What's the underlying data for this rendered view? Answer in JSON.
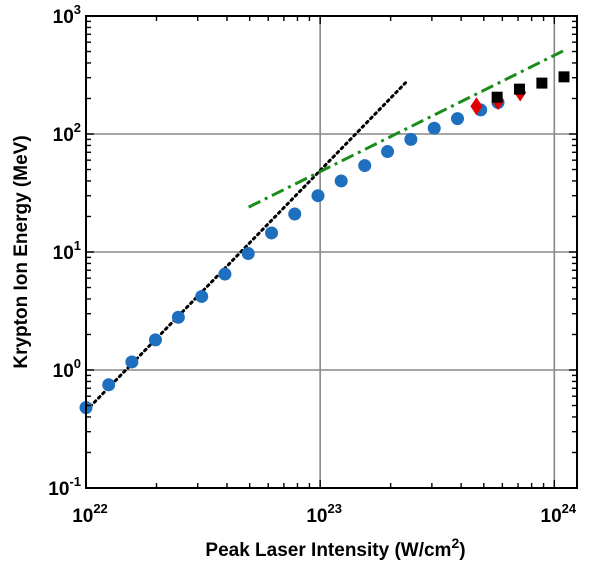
{
  "chart_data": {
    "type": "scatter",
    "xlabel": "Peak Laser Intensity (W/cm",
    "xlabel_sup": "2",
    "xlabel_close": ")",
    "ylabel": "Krypton Ion Energy (MeV)",
    "x_scale": "log",
    "y_scale": "log",
    "xlim": [
      1e+22,
      1.25e+24
    ],
    "ylim": [
      0.1,
      1000
    ],
    "grid": true,
    "x_ticks": [
      {
        "value": 1e+22,
        "base": "10",
        "exp": "22"
      },
      {
        "value": 1e+23,
        "base": "10",
        "exp": "23"
      },
      {
        "value": 1e+24,
        "base": "10",
        "exp": "24"
      }
    ],
    "y_ticks": [
      {
        "value": 0.1,
        "base": "10",
        "exp": "-1"
      },
      {
        "value": 1,
        "base": "10",
        "exp": "0"
      },
      {
        "value": 10,
        "base": "10",
        "exp": "1"
      },
      {
        "value": 100,
        "base": "10",
        "exp": "2"
      },
      {
        "value": 1000,
        "base": "10",
        "exp": "3"
      }
    ],
    "series": [
      {
        "marker": "circle",
        "color": "#1f6fbf",
        "x": [
          1e+22,
          1.25e+22,
          1.57e+22,
          1.98e+22,
          2.48e+22,
          3.12e+22,
          3.92e+22,
          4.93e+22,
          6.2e+22,
          7.79e+22,
          9.79e+22,
          1.23e+23,
          1.55e+23,
          1.94e+23,
          2.44e+23,
          3.07e+23,
          3.86e+23,
          4.85e+23,
          5.75e+23
        ],
        "y": [
          0.48,
          0.75,
          1.17,
          1.8,
          2.8,
          4.2,
          6.5,
          9.7,
          14.5,
          21,
          30,
          40,
          54,
          71,
          90,
          112,
          135,
          160,
          185
        ]
      },
      {
        "marker": "diamond",
        "color": "#e00000",
        "x": [
          4.65e+23,
          5.75e+23,
          7.15e+23
        ],
        "y": [
          172,
          190,
          225
        ]
      },
      {
        "marker": "square",
        "color": "#000000",
        "x": [
          5.7e+23,
          7.1e+23,
          8.85e+23,
          1.1e+24
        ],
        "y": [
          205,
          240,
          270,
          305
        ]
      }
    ],
    "lines": [
      {
        "style": "dotted",
        "color": "#000000",
        "x": [
          1e+22,
          2.35e+23
        ],
        "y": [
          0.45,
          280
        ]
      },
      {
        "style": "dashdot",
        "color": "#1a8c1a",
        "x": [
          4.95e+22,
          1.1e+24
        ],
        "y": [
          24,
          510
        ]
      }
    ]
  }
}
